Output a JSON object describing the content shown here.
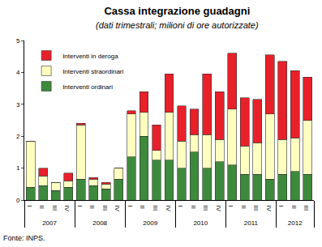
{
  "chart_data": {
    "type": "bar",
    "title": "Cassa integrazione guadagni",
    "subtitle": "(dati trimestrali; milioni di ore autorizzate)",
    "source": "Fonte: INPS.",
    "categories": [
      [
        "2007",
        "I"
      ],
      [
        "2007",
        "II"
      ],
      [
        "2007",
        "III"
      ],
      [
        "2007",
        "IV"
      ],
      [
        "2008",
        "I"
      ],
      [
        "2008",
        "II"
      ],
      [
        "2008",
        "III"
      ],
      [
        "2008",
        "IV"
      ],
      [
        "2009",
        "I"
      ],
      [
        "2009",
        "II"
      ],
      [
        "2009",
        "III"
      ],
      [
        "2009",
        "IV"
      ],
      [
        "2010",
        "I"
      ],
      [
        "2010",
        "II"
      ],
      [
        "2010",
        "III"
      ],
      [
        "2010",
        "IV"
      ],
      [
        "2011",
        "I"
      ],
      [
        "2011",
        "II"
      ],
      [
        "2011",
        "III"
      ],
      [
        "2011",
        "IV"
      ],
      [
        "2012",
        "I"
      ],
      [
        "2012",
        "II"
      ],
      [
        "2012",
        "III"
      ]
    ],
    "series": [
      {
        "name": "Interventi ordinari",
        "color": "#3d8a3d",
        "values": [
          0.4,
          0.45,
          0.3,
          0.4,
          0.65,
          0.45,
          0.35,
          0.65,
          1.35,
          2.0,
          1.25,
          1.25,
          1.0,
          1.5,
          1.0,
          1.2,
          1.1,
          0.8,
          0.8,
          0.65,
          0.8,
          0.9,
          0.8
        ]
      },
      {
        "name": "Interventi straordinari",
        "color": "#ffffc0",
        "values": [
          1.45,
          0.3,
          0.25,
          0.2,
          1.7,
          0.2,
          0.15,
          0.35,
          1.35,
          0.75,
          0.3,
          1.5,
          0.85,
          0.55,
          1.05,
          0.7,
          1.75,
          0.9,
          1.0,
          2.05,
          1.1,
          1.05,
          1.7
        ]
      },
      {
        "name": "Interventi in deroga",
        "color": "#e8202a",
        "values": [
          0,
          0.25,
          0,
          0.25,
          0.05,
          0.05,
          0.05,
          0,
          0.1,
          0.65,
          0.8,
          1.2,
          1.1,
          0.8,
          1.9,
          1.5,
          1.75,
          1.5,
          1.35,
          1.85,
          2.45,
          2.1,
          1.35
        ]
      }
    ],
    "stacked": true,
    "ylim": [
      0,
      5
    ],
    "yticks": [
      0,
      1,
      2,
      3,
      4,
      5
    ],
    "grid": false,
    "legend": "top-left"
  }
}
